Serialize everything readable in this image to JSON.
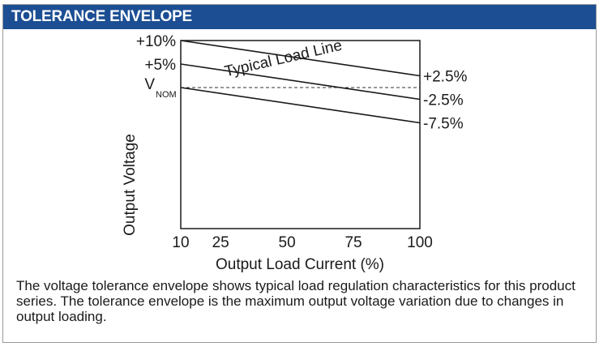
{
  "header": {
    "title": "TOLERANCE ENVELOPE"
  },
  "caption": "The voltage tolerance envelope shows typical load regulation characteristics for this product series. The tolerance envelope is the maximum output voltage variation due to changes in output loading.",
  "chart_data": {
    "type": "line",
    "xlabel": "Output Load Current (%)",
    "ylabel": "Output Voltage",
    "x_ticks": [
      10,
      25,
      50,
      75,
      100
    ],
    "xlim": [
      10,
      100
    ],
    "y_tick_labels": [
      {
        "label": "+10%",
        "value": 10
      },
      {
        "label": "+5%",
        "value": 5
      },
      {
        "label": "V",
        "sub": "NOM",
        "value": 0
      }
    ],
    "ylim": [
      -30,
      10
    ],
    "series": [
      {
        "x": [
          10,
          100
        ],
        "y": [
          10,
          2.5
        ],
        "end_label": "+2.5%"
      },
      {
        "x": [
          10,
          100
        ],
        "y": [
          5,
          -2.5
        ],
        "end_label": "-2.5%"
      },
      {
        "x": [
          10,
          100
        ],
        "y": [
          0,
          -7.5
        ],
        "end_label": "-7.5%"
      }
    ],
    "reference_line": {
      "y": 0,
      "style": "dashed"
    },
    "annotation": {
      "text": "Typical Load Line",
      "x": 49,
      "y": 5.2,
      "angle": -13
    },
    "grid": false,
    "colors": {
      "header": "#1c4e94",
      "line": "#1a1a1a"
    }
  }
}
